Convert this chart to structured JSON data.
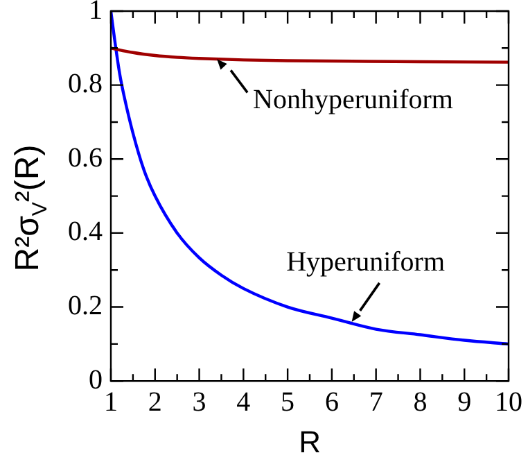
{
  "chart_data": {
    "type": "line",
    "xlabel": "R",
    "ylabel": "R²σ$_{V}$²(R)",
    "xlim": [
      1,
      10
    ],
    "ylim": [
      0,
      1
    ],
    "xticks": [
      1,
      {
        "value": 1.5,
        "label": null
      },
      2,
      {
        "value": 2.5,
        "label": null
      },
      3,
      {
        "value": 3.5,
        "label": null
      },
      4,
      {
        "value": 4.5,
        "label": null
      },
      5,
      {
        "value": 5.5,
        "label": null
      },
      6,
      {
        "value": 6.5,
        "label": null
      },
      7,
      {
        "value": 7.5,
        "label": null
      },
      8,
      {
        "value": 8.5,
        "label": null
      },
      9,
      {
        "value": 9.5,
        "label": null
      },
      10
    ],
    "yticks": [
      0,
      {
        "value": 0.1,
        "label": null
      },
      {
        "value": 0.2,
        "label": "0.2"
      },
      {
        "value": 0.3,
        "label": null
      },
      {
        "value": 0.4,
        "label": "0.4"
      },
      {
        "value": 0.5,
        "label": null
      },
      {
        "value": 0.6,
        "label": "0.6"
      },
      {
        "value": 0.7,
        "label": null
      },
      {
        "value": 0.8,
        "label": "0.8"
      },
      {
        "value": 0.9,
        "label": null
      },
      1
    ],
    "grid": false,
    "legend": false,
    "marker": "none",
    "line_style": "solid",
    "series": [
      {
        "color": "#a00000",
        "x": [
          1,
          1.5,
          2,
          2.5,
          3,
          4,
          5,
          6,
          8,
          10
        ],
        "values": [
          0.9,
          0.888,
          0.88,
          0.875,
          0.872,
          0.868,
          0.866,
          0.865,
          0.863,
          0.862
        ]
      },
      {
        "color": "#0000ff",
        "x": [
          1,
          1.1,
          1.2,
          1.3,
          1.5,
          1.75,
          2,
          2.5,
          3,
          3.5,
          4,
          5,
          6,
          7,
          8,
          9,
          10
        ],
        "values": [
          1,
          0.91,
          0.83,
          0.77,
          0.67,
          0.57,
          0.5,
          0.4,
          0.333,
          0.286,
          0.25,
          0.2,
          0.17,
          0.14,
          0.125,
          0.11,
          0.1
        ]
      }
    ],
    "annotations": [
      {
        "text": "Nonhyperuniform",
        "x": 3.4,
        "y": 0.87
      },
      {
        "text": "Hyperuniform",
        "x": 6.45,
        "y": 0.16
      }
    ]
  }
}
